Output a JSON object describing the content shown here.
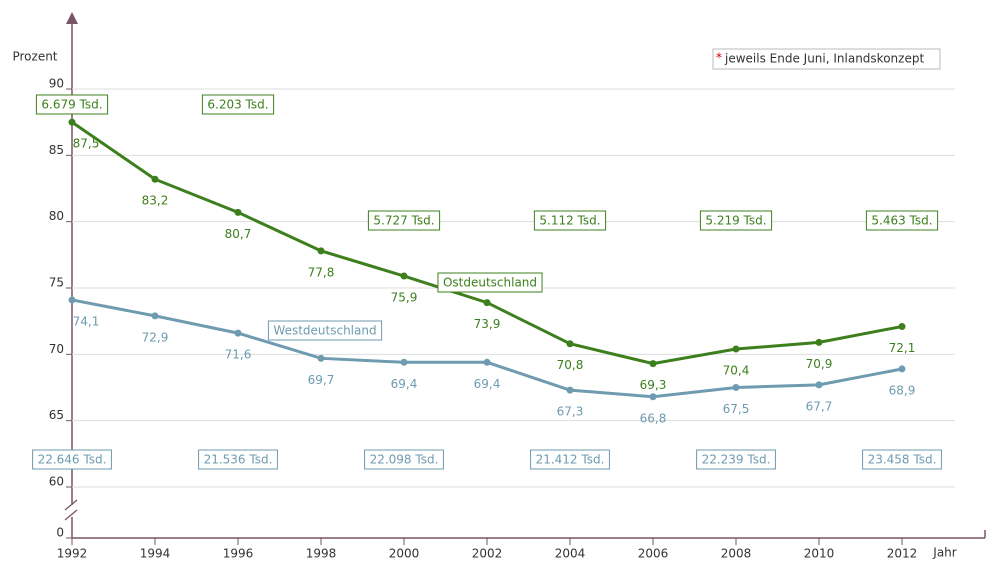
{
  "chart_data": {
    "type": "line",
    "y_axis_label": "Prozent",
    "x_axis_label": "Jahr",
    "note_marker": "*",
    "note": "jeweils Ende Juni, Inlandskonzept",
    "x": [
      1992,
      1994,
      1996,
      1998,
      2000,
      2002,
      2004,
      2006,
      2008,
      2010,
      2012
    ],
    "xlim": [
      1992,
      2012
    ],
    "xticks": [
      1992,
      1994,
      1996,
      1998,
      2000,
      2002,
      2004,
      2006,
      2008,
      2010,
      2012
    ],
    "ylim": [
      60,
      90
    ],
    "yticks": [
      0,
      60,
      65,
      70,
      75,
      80,
      85,
      90
    ],
    "axis_break": true,
    "grid": true,
    "series": [
      {
        "name": "Ostdeutschland",
        "color": "#3d7f1c",
        "values": [
          87.5,
          83.2,
          80.7,
          77.8,
          75.9,
          73.9,
          70.8,
          69.3,
          70.4,
          70.9,
          72.1
        ],
        "value_labels": [
          "87,5",
          "83,2",
          "80,7",
          "77,8",
          "75,9",
          "73,9",
          "70,8",
          "69,3",
          "70,4",
          "70,9",
          "72,1"
        ],
        "annotations": [
          {
            "x": 1992,
            "label": "6.679 Tsd."
          },
          {
            "x": 1996,
            "label": "6.203 Tsd."
          },
          {
            "x": 2000,
            "label": "5.727 Tsd."
          },
          {
            "x": 2004,
            "label": "5.112 Tsd."
          },
          {
            "x": 2008,
            "label": "5.219 Tsd."
          },
          {
            "x": 2012,
            "label": "5.463 Tsd."
          }
        ]
      },
      {
        "name": "Westdeutschland",
        "color": "#6e9bb0",
        "values": [
          74.1,
          72.9,
          71.6,
          69.7,
          69.4,
          69.4,
          67.3,
          66.8,
          67.5,
          67.7,
          68.9
        ],
        "value_labels": [
          "74,1",
          "72,9",
          "71,6",
          "69,7",
          "69,4",
          "69,4",
          "67,3",
          "66,8",
          "67,5",
          "67,7",
          "68,9"
        ],
        "annotations": [
          {
            "x": 1992,
            "label": "22.646 Tsd."
          },
          {
            "x": 1996,
            "label": "21.536 Tsd."
          },
          {
            "x": 2000,
            "label": "22.098 Tsd."
          },
          {
            "x": 2004,
            "label": "21.412 Tsd."
          },
          {
            "x": 2008,
            "label": "22.239 Tsd."
          },
          {
            "x": 2012,
            "label": "23.458 Tsd."
          }
        ]
      }
    ]
  }
}
